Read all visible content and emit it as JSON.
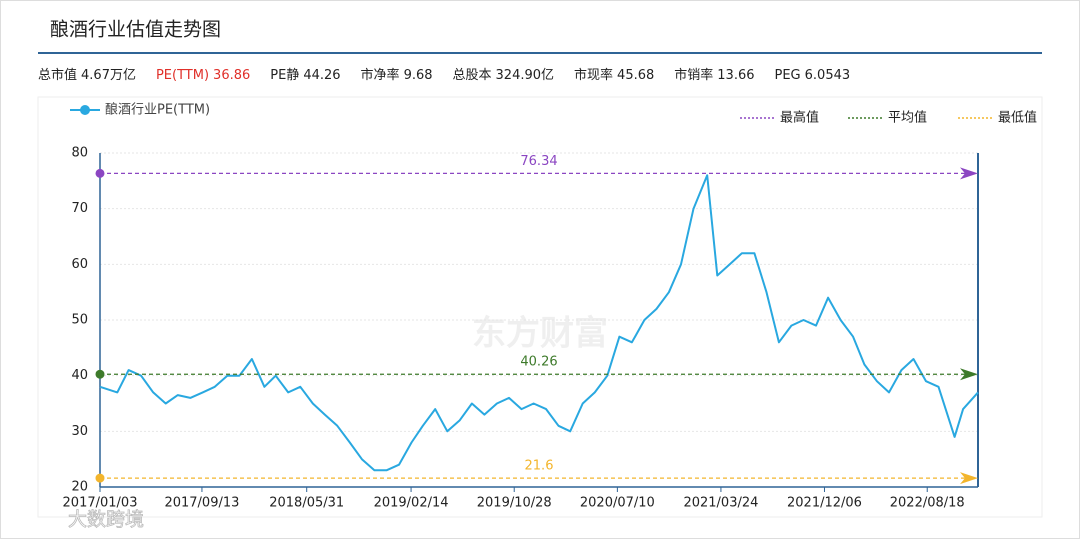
{
  "header": {
    "title": "酿酒行业估值走势图",
    "stats": [
      {
        "label": "总市值",
        "value": "4.67万亿"
      },
      {
        "label": "PE(TTM)",
        "value": "36.86"
      },
      {
        "label": "PE静",
        "value": "44.26"
      },
      {
        "label": "市净率",
        "value": "9.68"
      },
      {
        "label": "总股本",
        "value": "324.90亿"
      },
      {
        "label": "市现率",
        "value": "45.68"
      },
      {
        "label": "市销率",
        "value": "13.66"
      },
      {
        "label": "PEG",
        "value": "6.0543"
      }
    ]
  },
  "watermarks": [
    "东方财富",
    "大数跨境"
  ],
  "chart_data": {
    "type": "line",
    "xlim": [
      "2017/01/03",
      "2022/12/22"
    ],
    "xticks": [
      "2017/01/03",
      "2017/09/13",
      "2018/05/31",
      "2019/02/14",
      "2019/10/28",
      "2020/07/10",
      "2021/03/24",
      "2021/12/06",
      "2022/08/18"
    ],
    "ylim": [
      20,
      80
    ],
    "yticks": [
      20,
      30,
      40,
      50,
      60,
      70,
      80
    ],
    "grid": true,
    "x": [
      "2017/01/03",
      "2017/02/15",
      "2017/03/15",
      "2017/04/15",
      "2017/05/15",
      "2017/06/15",
      "2017/07/15",
      "2017/08/15",
      "2017/09/15",
      "2017/10/15",
      "2017/11/15",
      "2017/12/15",
      "2018/01/15",
      "2018/02/15",
      "2018/03/15",
      "2018/04/15",
      "2018/05/15",
      "2018/06/15",
      "2018/07/15",
      "2018/08/15",
      "2018/09/15",
      "2018/10/15",
      "2018/11/15",
      "2018/12/15",
      "2019/01/15",
      "2019/02/15",
      "2019/03/15",
      "2019/04/15",
      "2019/05/15",
      "2019/06/15",
      "2019/07/15",
      "2019/08/15",
      "2019/09/15",
      "2019/10/15",
      "2019/11/15",
      "2019/12/15",
      "2020/01/15",
      "2020/02/15",
      "2020/03/15",
      "2020/04/15",
      "2020/05/15",
      "2020/06/15",
      "2020/07/15",
      "2020/08/15",
      "2020/09/15",
      "2020/10/15",
      "2020/11/15",
      "2020/12/15",
      "2021/01/15",
      "2021/02/18",
      "2021/03/15",
      "2021/04/15",
      "2021/05/15",
      "2021/06/15",
      "2021/07/15",
      "2021/08/15",
      "2021/09/15",
      "2021/10/15",
      "2021/11/15",
      "2021/12/15",
      "2022/01/15",
      "2022/02/15",
      "2022/03/15",
      "2022/04/15",
      "2022/05/15",
      "2022/06/15",
      "2022/07/15",
      "2022/08/15",
      "2022/09/15",
      "2022/10/25",
      "2022/11/15",
      "2022/12/22"
    ],
    "series": [
      {
        "name": "酿酒行业PE(TTM)",
        "color": "#29a8e0",
        "values": [
          38,
          37,
          41,
          40,
          37,
          35,
          36.5,
          36,
          37,
          38,
          40,
          40,
          43,
          38,
          40,
          37,
          38,
          35,
          33,
          31,
          28,
          25,
          23,
          23,
          24,
          28,
          31,
          34,
          30,
          32,
          35,
          33,
          35,
          36,
          34,
          35,
          34,
          31,
          30,
          35,
          37,
          40,
          47,
          46,
          50,
          52,
          55,
          60,
          70,
          76,
          58,
          60,
          62,
          62,
          55,
          46,
          49,
          50,
          49,
          54,
          50,
          47,
          42,
          39,
          37,
          41,
          43,
          39,
          38,
          29,
          34,
          37
        ]
      }
    ],
    "mark_lines": [
      {
        "name": "最高值",
        "value": 76.34,
        "color": "#8b46c2"
      },
      {
        "name": "平均值",
        "value": 40.26,
        "color": "#3d7a2a"
      },
      {
        "name": "最低值",
        "value": 21.6,
        "color": "#f3b52c"
      }
    ]
  }
}
